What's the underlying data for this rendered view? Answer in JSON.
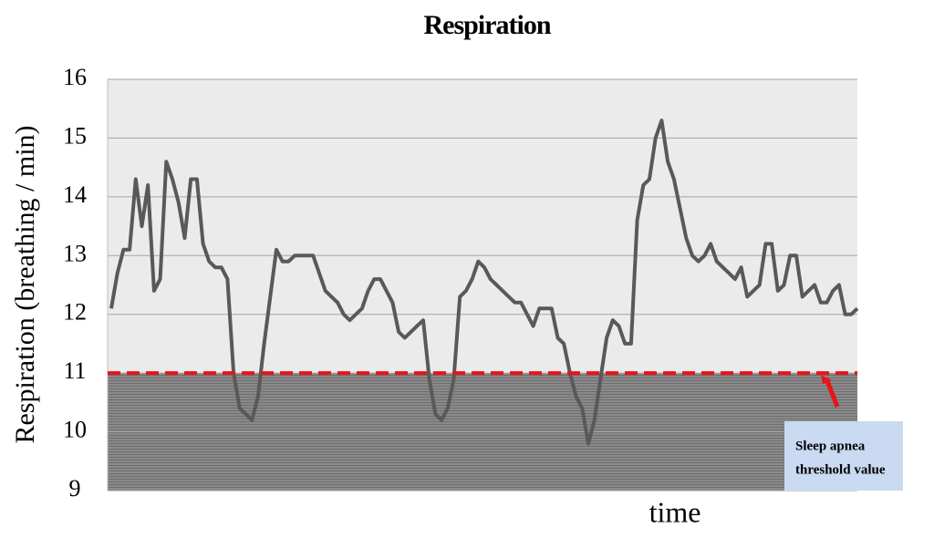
{
  "chart_data": {
    "type": "line",
    "title": "Respiration",
    "y_label": "Respiration (breathing / min)",
    "x_label": "time",
    "ylim": [
      9,
      16
    ],
    "yticks": [
      9,
      10,
      11,
      12,
      13,
      14,
      15,
      16
    ],
    "grid": true,
    "threshold": 11,
    "threshold_color": "#e8141a",
    "annotation": [
      "Sleep apnea",
      "threshold value"
    ],
    "series": [
      {
        "name": "Respiration",
        "color": "#595959",
        "values": [
          12.1,
          12.7,
          13.1,
          13.1,
          14.3,
          13.5,
          14.2,
          12.4,
          12.6,
          14.6,
          14.3,
          13.9,
          13.3,
          14.3,
          14.3,
          13.2,
          12.9,
          12.8,
          12.8,
          12.6,
          11.0,
          10.4,
          10.3,
          10.2,
          10.6,
          11.5,
          12.3,
          13.1,
          12.9,
          12.9,
          13.0,
          13.0,
          13.0,
          13.0,
          12.7,
          12.4,
          12.3,
          12.2,
          12.0,
          11.9,
          12.0,
          12.1,
          12.4,
          12.6,
          12.6,
          12.4,
          12.2,
          11.7,
          11.6,
          11.7,
          11.8,
          11.9,
          10.9,
          10.3,
          10.2,
          10.4,
          10.9,
          12.3,
          12.4,
          12.6,
          12.9,
          12.8,
          12.6,
          12.5,
          12.4,
          12.3,
          12.2,
          12.2,
          12.0,
          11.8,
          12.1,
          12.1,
          12.1,
          11.6,
          11.5,
          11.0,
          10.6,
          10.4,
          9.8,
          10.2,
          10.9,
          11.6,
          11.9,
          11.8,
          11.5,
          11.5,
          13.6,
          14.2,
          14.3,
          15.0,
          15.3,
          14.6,
          14.3,
          13.8,
          13.3,
          13.0,
          12.9,
          13.0,
          13.2,
          12.9,
          12.8,
          12.7,
          12.6,
          12.8,
          12.3,
          12.4,
          12.5,
          13.2,
          13.2,
          12.4,
          12.5,
          13.0,
          13.0,
          12.3,
          12.4,
          12.5,
          12.2,
          12.2,
          12.4,
          12.5,
          12.0,
          12.0,
          12.1
        ]
      }
    ]
  }
}
